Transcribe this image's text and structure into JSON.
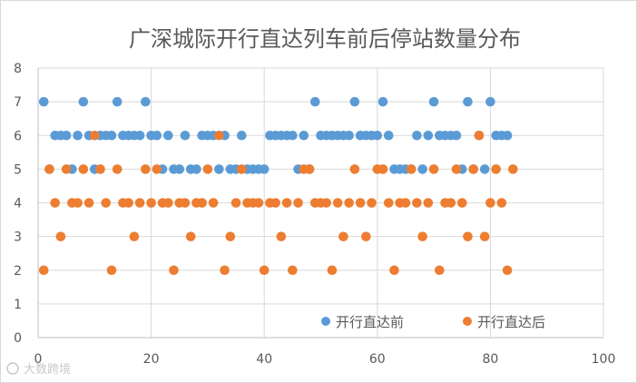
{
  "chart_data": {
    "type": "scatter",
    "title": "广深城际开行直达列车前后停站数量分布",
    "xlim": [
      0,
      100
    ],
    "ylim": [
      0,
      8
    ],
    "x_ticks": [
      0,
      20,
      40,
      60,
      80,
      100
    ],
    "y_ticks": [
      0,
      1,
      2,
      3,
      4,
      5,
      6,
      7,
      8
    ],
    "grid": "vertical and horizontal",
    "legend_position": "bottom-right",
    "series": [
      {
        "name": "开行直达前",
        "color": "#5b9bd5",
        "points": [
          [
            1,
            7
          ],
          [
            2,
            5
          ],
          [
            3,
            6
          ],
          [
            4,
            6
          ],
          [
            5,
            6
          ],
          [
            6,
            5
          ],
          [
            7,
            6
          ],
          [
            8,
            7
          ],
          [
            9,
            6
          ],
          [
            10,
            5
          ],
          [
            11,
            6
          ],
          [
            12,
            6
          ],
          [
            13,
            6
          ],
          [
            14,
            7
          ],
          [
            15,
            6
          ],
          [
            16,
            6
          ],
          [
            17,
            6
          ],
          [
            18,
            6
          ],
          [
            19,
            7
          ],
          [
            20,
            6
          ],
          [
            21,
            6
          ],
          [
            22,
            5
          ],
          [
            23,
            6
          ],
          [
            24,
            5
          ],
          [
            25,
            5
          ],
          [
            26,
            6
          ],
          [
            27,
            5
          ],
          [
            28,
            5
          ],
          [
            29,
            6
          ],
          [
            30,
            6
          ],
          [
            31,
            6
          ],
          [
            32,
            5
          ],
          [
            33,
            6
          ],
          [
            34,
            5
          ],
          [
            35,
            5
          ],
          [
            36,
            6
          ],
          [
            37,
            5
          ],
          [
            38,
            5
          ],
          [
            39,
            5
          ],
          [
            40,
            5
          ],
          [
            41,
            6
          ],
          [
            42,
            6
          ],
          [
            43,
            6
          ],
          [
            44,
            6
          ],
          [
            45,
            6
          ],
          [
            46,
            5
          ],
          [
            47,
            6
          ],
          [
            48,
            5
          ],
          [
            49,
            7
          ],
          [
            50,
            6
          ],
          [
            51,
            6
          ],
          [
            52,
            6
          ],
          [
            53,
            6
          ],
          [
            54,
            6
          ],
          [
            55,
            6
          ],
          [
            56,
            7
          ],
          [
            57,
            6
          ],
          [
            58,
            6
          ],
          [
            59,
            6
          ],
          [
            60,
            6
          ],
          [
            61,
            7
          ],
          [
            62,
            6
          ],
          [
            63,
            5
          ],
          [
            64,
            5
          ],
          [
            65,
            5
          ],
          [
            66,
            5
          ],
          [
            67,
            6
          ],
          [
            68,
            5
          ],
          [
            69,
            6
          ],
          [
            70,
            7
          ],
          [
            71,
            6
          ],
          [
            72,
            6
          ],
          [
            73,
            6
          ],
          [
            74,
            6
          ],
          [
            75,
            5
          ],
          [
            76,
            7
          ],
          [
            77,
            5
          ],
          [
            78,
            6
          ],
          [
            79,
            5
          ],
          [
            80,
            7
          ],
          [
            81,
            6
          ],
          [
            82,
            6
          ],
          [
            83,
            6
          ]
        ]
      },
      {
        "name": "开行直达后",
        "color": "#ed7d31",
        "points": [
          [
            1,
            2
          ],
          [
            2,
            5
          ],
          [
            3,
            4
          ],
          [
            4,
            3
          ],
          [
            5,
            5
          ],
          [
            6,
            4
          ],
          [
            7,
            4
          ],
          [
            8,
            5
          ],
          [
            9,
            4
          ],
          [
            10,
            6
          ],
          [
            11,
            5
          ],
          [
            12,
            4
          ],
          [
            13,
            2
          ],
          [
            14,
            5
          ],
          [
            15,
            4
          ],
          [
            16,
            4
          ],
          [
            17,
            3
          ],
          [
            18,
            4
          ],
          [
            19,
            5
          ],
          [
            20,
            4
          ],
          [
            21,
            5
          ],
          [
            22,
            4
          ],
          [
            23,
            4
          ],
          [
            24,
            2
          ],
          [
            25,
            4
          ],
          [
            26,
            4
          ],
          [
            27,
            3
          ],
          [
            28,
            4
          ],
          [
            29,
            4
          ],
          [
            30,
            5
          ],
          [
            31,
            4
          ],
          [
            32,
            6
          ],
          [
            33,
            2
          ],
          [
            34,
            3
          ],
          [
            35,
            4
          ],
          [
            36,
            5
          ],
          [
            37,
            4
          ],
          [
            38,
            4
          ],
          [
            39,
            4
          ],
          [
            40,
            2
          ],
          [
            41,
            4
          ],
          [
            42,
            4
          ],
          [
            43,
            3
          ],
          [
            44,
            4
          ],
          [
            45,
            2
          ],
          [
            46,
            4
          ],
          [
            47,
            5
          ],
          [
            48,
            5
          ],
          [
            49,
            4
          ],
          [
            50,
            4
          ],
          [
            51,
            4
          ],
          [
            52,
            2
          ],
          [
            53,
            4
          ],
          [
            54,
            3
          ],
          [
            55,
            4
          ],
          [
            56,
            5
          ],
          [
            57,
            4
          ],
          [
            58,
            3
          ],
          [
            59,
            4
          ],
          [
            60,
            5
          ],
          [
            61,
            5
          ],
          [
            62,
            4
          ],
          [
            63,
            2
          ],
          [
            64,
            4
          ],
          [
            65,
            4
          ],
          [
            66,
            5
          ],
          [
            67,
            4
          ],
          [
            68,
            3
          ],
          [
            69,
            4
          ],
          [
            70,
            5
          ],
          [
            71,
            2
          ],
          [
            72,
            4
          ],
          [
            73,
            4
          ],
          [
            74,
            5
          ],
          [
            75,
            4
          ],
          [
            76,
            3
          ],
          [
            77,
            5
          ],
          [
            78,
            6
          ],
          [
            79,
            3
          ],
          [
            80,
            4
          ],
          [
            81,
            5
          ],
          [
            82,
            4
          ],
          [
            83,
            2
          ],
          [
            84,
            5
          ]
        ]
      }
    ]
  },
  "watermark": "大数跨境"
}
